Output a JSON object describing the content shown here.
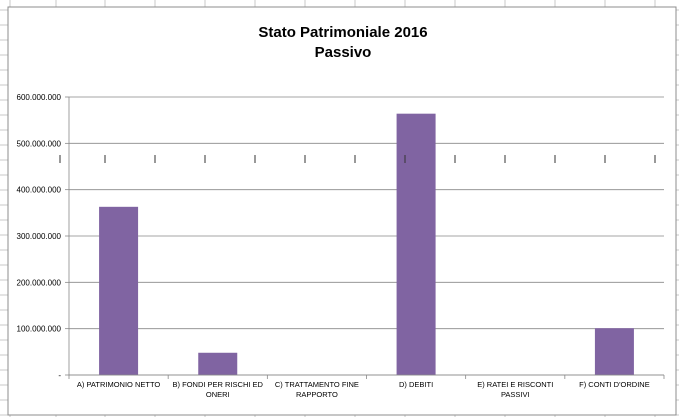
{
  "chart_data": {
    "type": "bar",
    "title": [
      "Stato Patrimoniale 2016",
      "Passivo"
    ],
    "categories": [
      [
        "A) PATRIMONIO NETTO"
      ],
      [
        "B) FONDI PER RISCHI ED",
        "ONERI"
      ],
      [
        "C) TRATTAMENTO FINE",
        "RAPPORTO"
      ],
      [
        "D) DEBITI"
      ],
      [
        "E) RATEI E RISCONTI",
        "PASSIVI"
      ],
      [
        "F) CONTI D'ORDINE"
      ]
    ],
    "values": [
      363000000,
      48000000,
      0,
      564000000,
      0,
      101000000
    ],
    "ylim": [
      0,
      600000000
    ],
    "yticks": [
      {
        "value": 0,
        "label": "-"
      },
      {
        "value": 100000000,
        "label": "100.000.000"
      },
      {
        "value": 200000000,
        "label": "200.000.000"
      },
      {
        "value": 300000000,
        "label": "300.000.000"
      },
      {
        "value": 400000000,
        "label": "400.000.000"
      },
      {
        "value": 500000000,
        "label": "500.000.000"
      },
      {
        "value": 600000000,
        "label": "600.000.000"
      }
    ],
    "grid": true,
    "legend": "none",
    "colors": {
      "bar": "#8064A2",
      "grid": "#888888",
      "frame": "#888888",
      "sheet_lines": "#c8c8c8"
    }
  }
}
